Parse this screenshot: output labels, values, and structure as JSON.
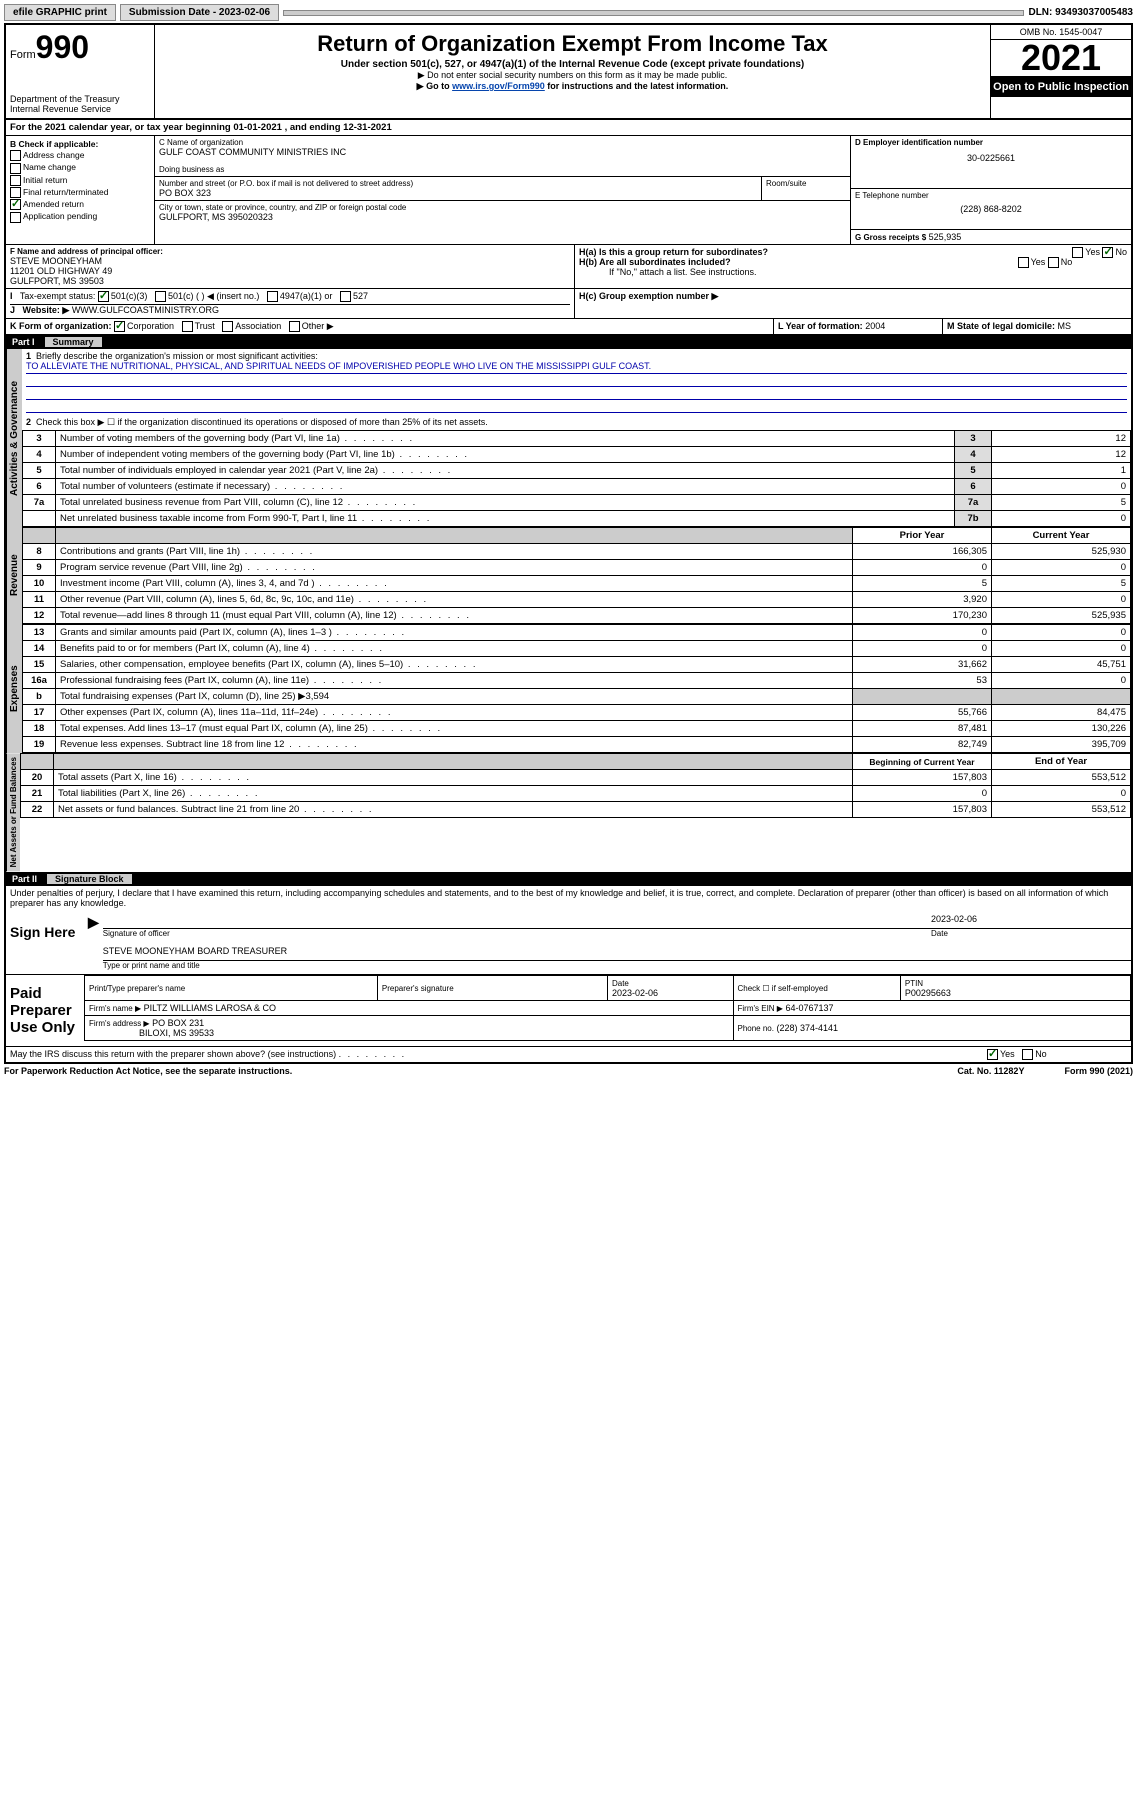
{
  "topbar": {
    "efile": "efile GRAPHIC print",
    "sub_date_label": "Submission Date - 2023-02-06",
    "dln": "DLN: 93493037005483"
  },
  "header": {
    "form_prefix": "Form",
    "form_num": "990",
    "dept": "Department of the Treasury",
    "irs": "Internal Revenue Service",
    "title": "Return of Organization Exempt From Income Tax",
    "subtitle": "Under section 501(c), 527, or 4947(a)(1) of the Internal Revenue Code (except private foundations)",
    "note1": "▶ Do not enter social security numbers on this form as it may be made public.",
    "note2_pre": "▶ Go to ",
    "note2_link": "www.irs.gov/Form990",
    "note2_post": " for instructions and the latest information.",
    "omb": "OMB No. 1545-0047",
    "year": "2021",
    "open": "Open to Public Inspection"
  },
  "lineA": "For the 2021 calendar year, or tax year beginning 01-01-2021   , and ending 12-31-2021",
  "sectionB": {
    "title": "B Check if applicable:",
    "items": [
      "Address change",
      "Name change",
      "Initial return",
      "Final return/terminated",
      "Amended return",
      "Application pending"
    ],
    "checked_idx": 4
  },
  "sectionC": {
    "label_name": "C Name of organization",
    "org": "GULF COAST COMMUNITY MINISTRIES INC",
    "dba_label": "Doing business as",
    "street_label": "Number and street (or P.O. box if mail is not delivered to street address)",
    "room_label": "Room/suite",
    "street": "PO BOX 323",
    "city_label": "City or town, state or province, country, and ZIP or foreign postal code",
    "city": "GULFPORT, MS  395020323"
  },
  "sectionD": {
    "label": "D Employer identification number",
    "ein": "30-0225661"
  },
  "sectionE": {
    "label": "E Telephone number",
    "phone": "(228) 868-8202"
  },
  "sectionG": {
    "label": "G Gross receipts $",
    "amount": "525,935"
  },
  "sectionF": {
    "label": "F Name and address of principal officer:",
    "name": "STEVE MOONEYHAM",
    "addr1": "11201 OLD HIGHWAY 49",
    "addr2": "GULFPORT, MS  39503"
  },
  "sectionH": {
    "ha": "H(a)  Is this a group return for subordinates?",
    "hb": "H(b)  Are all subordinates included?",
    "hb_note": "If \"No,\" attach a list. See instructions.",
    "hc": "H(c)  Group exemption number ▶"
  },
  "sectionI": {
    "label": "Tax-exempt status:",
    "opts": [
      "501(c)(3)",
      "501(c) (  ) ◀ (insert no.)",
      "4947(a)(1) or",
      "527"
    ]
  },
  "sectionJ": {
    "label": "Website: ▶",
    "url": "WWW.GULFCOASTMINISTRY.ORG"
  },
  "sectionK": {
    "label": "K Form of organization:",
    "opts": [
      "Corporation",
      "Trust",
      "Association",
      "Other ▶"
    ]
  },
  "sectionL": {
    "label": "L Year of formation:",
    "val": "2004"
  },
  "sectionM": {
    "label": "M State of legal domicile:",
    "val": "MS"
  },
  "part1": {
    "title": "Part I",
    "subtitle": "Summary",
    "tabs": {
      "ag": "Activities & Governance",
      "rev": "Revenue",
      "exp": "Expenses",
      "net": "Net Assets or Fund Balances"
    },
    "line1_label": "Briefly describe the organization's mission or most significant activities:",
    "mission": "TO ALLEVIATE THE NUTRITIONAL, PHYSICAL, AND SPIRITUAL NEEDS OF IMPOVERISHED PEOPLE WHO LIVE ON THE MISSISSIPPI GULF COAST.",
    "line2": "Check this box ▶ ☐  if the organization discontinued its operations or disposed of more than 25% of its net assets.",
    "gov_rows": [
      {
        "n": "3",
        "t": "Number of voting members of the governing body (Part VI, line 1a)",
        "l": "3",
        "v": "12"
      },
      {
        "n": "4",
        "t": "Number of independent voting members of the governing body (Part VI, line 1b)",
        "l": "4",
        "v": "12"
      },
      {
        "n": "5",
        "t": "Total number of individuals employed in calendar year 2021 (Part V, line 2a)",
        "l": "5",
        "v": "1"
      },
      {
        "n": "6",
        "t": "Total number of volunteers (estimate if necessary)",
        "l": "6",
        "v": "0"
      },
      {
        "n": "7a",
        "t": "Total unrelated business revenue from Part VIII, column (C), line 12",
        "l": "7a",
        "v": "5"
      },
      {
        "n": "",
        "t": "Net unrelated business taxable income from Form 990-T, Part I, line 11",
        "l": "7b",
        "v": "0"
      }
    ],
    "col_headers": {
      "prior": "Prior Year",
      "current": "Current Year"
    },
    "rev_rows": [
      {
        "n": "8",
        "t": "Contributions and grants (Part VIII, line 1h)",
        "p": "166,305",
        "c": "525,930"
      },
      {
        "n": "9",
        "t": "Program service revenue (Part VIII, line 2g)",
        "p": "0",
        "c": "0"
      },
      {
        "n": "10",
        "t": "Investment income (Part VIII, column (A), lines 3, 4, and 7d )",
        "p": "5",
        "c": "5"
      },
      {
        "n": "11",
        "t": "Other revenue (Part VIII, column (A), lines 5, 6d, 8c, 9c, 10c, and 11e)",
        "p": "3,920",
        "c": "0"
      },
      {
        "n": "12",
        "t": "Total revenue—add lines 8 through 11 (must equal Part VIII, column (A), line 12)",
        "p": "170,230",
        "c": "525,935"
      }
    ],
    "exp_rows": [
      {
        "n": "13",
        "t": "Grants and similar amounts paid (Part IX, column (A), lines 1–3 )",
        "p": "0",
        "c": "0"
      },
      {
        "n": "14",
        "t": "Benefits paid to or for members (Part IX, column (A), line 4)",
        "p": "0",
        "c": "0"
      },
      {
        "n": "15",
        "t": "Salaries, other compensation, employee benefits (Part IX, column (A), lines 5–10)",
        "p": "31,662",
        "c": "45,751"
      },
      {
        "n": "16a",
        "t": "Professional fundraising fees (Part IX, column (A), line 11e)",
        "p": "53",
        "c": "0"
      },
      {
        "n": "b",
        "t": "Total fundraising expenses (Part IX, column (D), line 25) ▶3,594",
        "shade": true
      },
      {
        "n": "17",
        "t": "Other expenses (Part IX, column (A), lines 11a–11d, 11f–24e)",
        "p": "55,766",
        "c": "84,475"
      },
      {
        "n": "18",
        "t": "Total expenses. Add lines 13–17 (must equal Part IX, column (A), line 25)",
        "p": "87,481",
        "c": "130,226"
      },
      {
        "n": "19",
        "t": "Revenue less expenses. Subtract line 18 from line 12",
        "p": "82,749",
        "c": "395,709"
      }
    ],
    "net_headers": {
      "begin": "Beginning of Current Year",
      "end": "End of Year"
    },
    "net_rows": [
      {
        "n": "20",
        "t": "Total assets (Part X, line 16)",
        "p": "157,803",
        "c": "553,512"
      },
      {
        "n": "21",
        "t": "Total liabilities (Part X, line 26)",
        "p": "0",
        "c": "0"
      },
      {
        "n": "22",
        "t": "Net assets or fund balances. Subtract line 21 from line 20",
        "p": "157,803",
        "c": "553,512"
      }
    ]
  },
  "part2": {
    "title": "Part II",
    "subtitle": "Signature Block",
    "perjury": "Under penalties of perjury, I declare that I have examined this return, including accompanying schedules and statements, and to the best of my knowledge and belief, it is true, correct, and complete. Declaration of preparer (other than officer) is based on all information of which preparer has any knowledge.",
    "sign_here": "Sign Here",
    "sig_officer": "Signature of officer",
    "sig_date": "2023-02-06",
    "date_label": "Date",
    "officer_name": "STEVE MOONEYHAM  BOARD TREASURER",
    "type_name": "Type or print name and title",
    "paid": "Paid Preparer Use Only",
    "prep_headers": {
      "name": "Print/Type preparer's name",
      "sig": "Preparer's signature",
      "date": "Date",
      "check": "Check ☐ if self-employed",
      "ptin": "PTIN"
    },
    "prep_date": "2023-02-06",
    "ptin": "P00295663",
    "firm_name_label": "Firm's name     ▶",
    "firm_name": "PILTZ WILLIAMS LAROSA & CO",
    "firm_ein_label": "Firm's EIN ▶",
    "firm_ein": "64-0767137",
    "firm_addr_label": "Firm's address ▶",
    "firm_addr": "PO BOX 231",
    "firm_city": "BILOXI, MS  39533",
    "phone_label": "Phone no.",
    "phone": "(228) 374-4141",
    "discuss": "May the IRS discuss this return with the preparer shown above? (see instructions)"
  },
  "footer": {
    "left": "For Paperwork Reduction Act Notice, see the separate instructions.",
    "mid": "Cat. No. 11282Y",
    "right": "Form 990 (2021)"
  }
}
